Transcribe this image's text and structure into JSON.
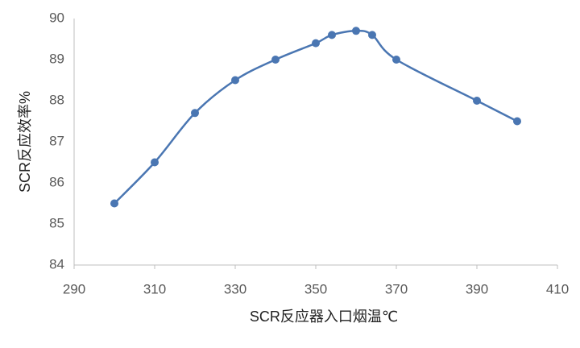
{
  "chart_data": {
    "type": "line",
    "x_label": "SCR反应器入口烟温℃",
    "y_label": "SCR反应效率%",
    "x": [
      300,
      310,
      320,
      330,
      340,
      350,
      354,
      360,
      364,
      370,
      390,
      400
    ],
    "values": [
      85.5,
      86.5,
      87.7,
      88.5,
      89.0,
      89.4,
      89.6,
      89.7,
      89.6,
      89.0,
      88.0,
      87.5
    ],
    "color": "#4a76b2",
    "xlim": [
      290,
      410
    ],
    "xticks": [
      290,
      310,
      330,
      350,
      370,
      390,
      410
    ],
    "ylim": [
      84,
      90
    ],
    "yticks": [
      84,
      85,
      86,
      87,
      88,
      89,
      90
    ],
    "smooth": true,
    "grid": false
  }
}
